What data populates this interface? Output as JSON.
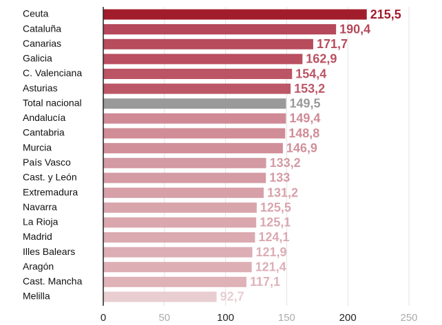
{
  "chart_data": {
    "type": "hbar",
    "categories": [
      "Ceuta",
      "Cataluña",
      "Canarias",
      "Galicia",
      "C. Valenciana",
      "Asturias",
      "Total nacional",
      "Andalucía",
      "Cantabria",
      "Murcia",
      "País Vasco",
      "Cast. y León",
      "Extremadura",
      "Navarra",
      "La Rioja",
      "Madrid",
      "Illes Balears",
      "Aragón",
      "Cast. Mancha",
      "Melilla"
    ],
    "values": [
      215.5,
      190.4,
      171.7,
      162.9,
      154.4,
      153.2,
      149.5,
      149.4,
      148.8,
      146.9,
      133.2,
      133,
      131.2,
      125.5,
      125.1,
      124.1,
      121.9,
      121.4,
      117.1,
      92.7
    ],
    "value_labels": [
      "215,5",
      "190,4",
      "171,7",
      "162,9",
      "154,4",
      "153,2",
      "149,5",
      "149,4",
      "148,8",
      "146,9",
      "133,2",
      "133",
      "131,2",
      "125,5",
      "125,1",
      "124,1",
      "121,9",
      "121,4",
      "117,1",
      "92,7"
    ],
    "colors": [
      "#a21d2b",
      "#b5485a",
      "#b64c5c",
      "#b94f60",
      "#bb5565",
      "#bc5767",
      "#999999",
      "#cf8a96",
      "#d08c97",
      "#d18f9a",
      "#d39aa3",
      "#d49ba4",
      "#d7a0a9",
      "#d9a5ad",
      "#daa7ae",
      "#dba9b0",
      "#dcadb4",
      "#ddafb5",
      "#dfb2b8",
      "#e8cdd1"
    ],
    "xlim": [
      0,
      250
    ],
    "xticks": [
      0,
      50,
      100,
      150,
      200,
      250
    ],
    "xtick_colors": [
      "#222222",
      "#aaaaaa",
      "#222222",
      "#aaaaaa",
      "#222222",
      "#aaaaaa"
    ],
    "grid": true
  }
}
